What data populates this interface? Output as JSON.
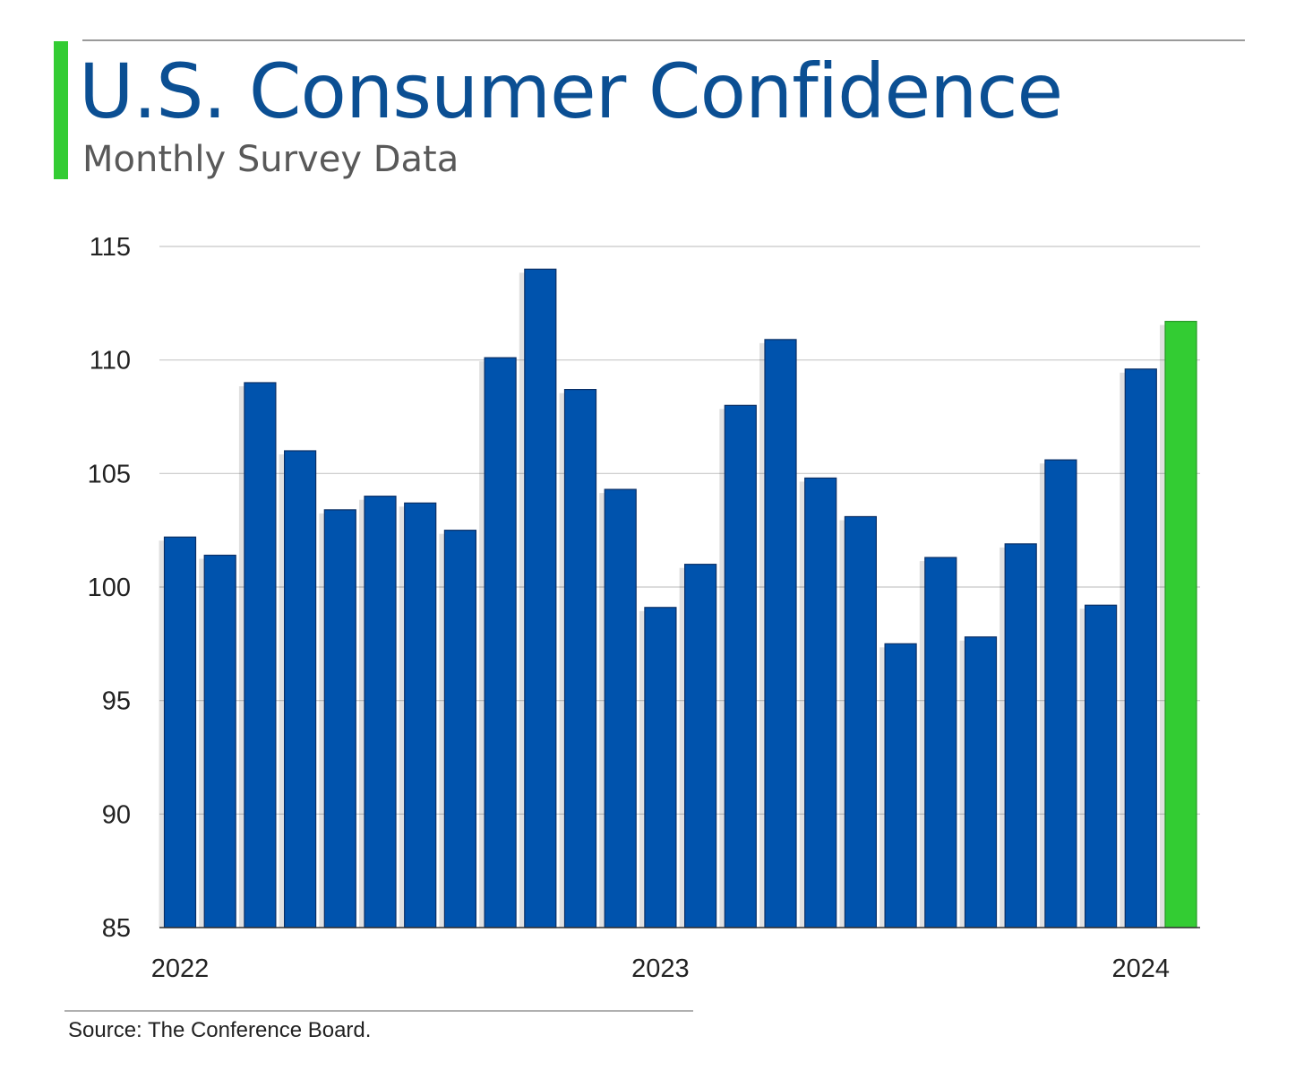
{
  "header": {
    "title": "U.S. Consumer Confidence",
    "subtitle": "Monthly Survey Data"
  },
  "footer": {
    "source": "Source: The Conference Board."
  },
  "colors": {
    "bar": "#0053ad",
    "highlight": "#33cc33",
    "title": "#0b4f93",
    "accent": "#33cc33"
  },
  "chart_data": {
    "type": "bar",
    "title": "U.S. Consumer Confidence",
    "subtitle": "Monthly Survey Data",
    "xlabel": "",
    "ylabel": "",
    "ylim": [
      85,
      115
    ],
    "yticks": [
      85,
      90,
      95,
      100,
      105,
      110,
      115
    ],
    "x_tick_labels": [
      {
        "label": "2022",
        "index": 0
      },
      {
        "label": "2023",
        "index": 12
      },
      {
        "label": "2024",
        "index": 24
      }
    ],
    "grid": true,
    "legend": "none",
    "values": [
      102.2,
      101.4,
      109.0,
      106.0,
      103.4,
      104.0,
      103.7,
      102.5,
      110.1,
      114.0,
      108.7,
      104.3,
      99.1,
      101.0,
      108.0,
      110.9,
      104.8,
      103.1,
      97.5,
      101.3,
      97.8,
      101.9,
      105.6,
      99.2,
      109.6,
      111.7
    ],
    "highlight_index": 25
  }
}
